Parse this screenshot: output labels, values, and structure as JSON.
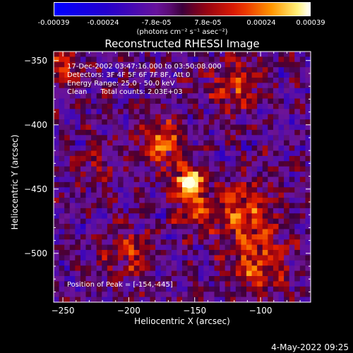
{
  "chart_data": {
    "type": "heatmap",
    "title": "Reconstructed RHESSI Image",
    "xlabel": "Heliocentric X (arcsec)",
    "ylabel": "Heliocentric Y (arcsec)",
    "xlim": [
      -257,
      -62
    ],
    "ylim": [
      -538,
      -343
    ],
    "x_ticks": [
      "-250",
      "-200",
      "-150",
      "-100"
    ],
    "y_ticks": [
      "-350",
      "-400",
      "-450",
      "-500"
    ],
    "colorbar": {
      "ticks": [
        "-0.00039",
        "-0.00024",
        "-7.8e-05",
        "7.8e-05",
        "0.00024",
        "0.00039"
      ],
      "unit_label": "(photons cm⁻² s⁻¹ asec⁻²)",
      "range": [
        -0.00039,
        0.00039
      ]
    },
    "annotations": {
      "time_range": "17-Dec-2002 03:47:16.000 to 03:50:08.000",
      "detectors": "Detectors: 3F 4F 5F 6F 7F 8F, Att 0",
      "energy_range": "Energy Range: 25.0 - 50.0 keV",
      "method_counts": "Clean      Total counts: 2.03E+03",
      "peak": "Position of Peak = [-154,-445]"
    },
    "peak_position": [
      -154,
      -445
    ],
    "colors": {
      "background": "#000000",
      "negative": "#0000ff",
      "mid": "#8000a0",
      "positive": "#ff2000",
      "peak": "#ffffff"
    }
  },
  "timestamp": "4-May-2022 09:25"
}
